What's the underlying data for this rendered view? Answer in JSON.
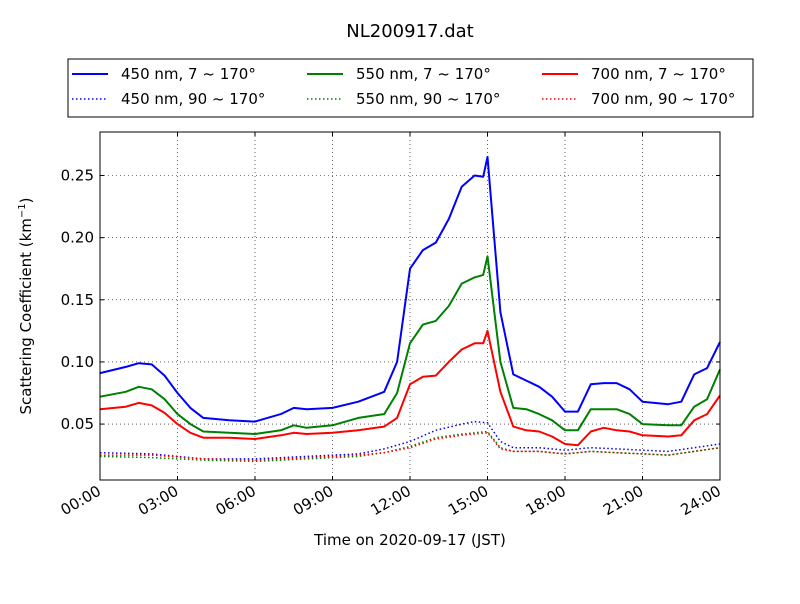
{
  "chart_data": {
    "type": "line",
    "title": "NL200917.dat",
    "xlabel": "Time on 2020-09-17 (JST)",
    "ylabel_main": "Scattering Coefficient (km",
    "ylabel_sup": "−1",
    "ylabel_end": ")",
    "xlim": [
      "00:00",
      "24:00"
    ],
    "ylim": [
      0.005,
      0.285
    ],
    "x_ticks": [
      "00:00",
      "03:00",
      "06:00",
      "09:00",
      "12:00",
      "15:00",
      "18:00",
      "21:00",
      "24:00"
    ],
    "y_ticks": [
      "0.05",
      "0.10",
      "0.15",
      "0.20",
      "0.25"
    ],
    "grid": true,
    "legend_position": "top, above plot, 3 columns",
    "series": [
      {
        "name": "450 nm, 7 ~ 170°",
        "color": "#0000ff",
        "style": "solid",
        "x": [
          "00:00",
          "01:00",
          "01:30",
          "02:00",
          "02:30",
          "03:00",
          "03:30",
          "04:00",
          "05:00",
          "06:00",
          "07:00",
          "07:30",
          "08:00",
          "09:00",
          "10:00",
          "11:00",
          "11:30",
          "12:00",
          "12:30",
          "13:00",
          "13:30",
          "14:00",
          "14:30",
          "14:50",
          "15:00",
          "15:30",
          "16:00",
          "16:30",
          "17:00",
          "17:30",
          "18:00",
          "18:30",
          "19:00",
          "19:30",
          "20:00",
          "20:30",
          "21:00",
          "22:00",
          "22:30",
          "23:00",
          "23:30",
          "24:00"
        ],
        "values": [
          0.091,
          0.096,
          0.099,
          0.098,
          0.089,
          0.075,
          0.063,
          0.055,
          0.053,
          0.052,
          0.058,
          0.063,
          0.062,
          0.063,
          0.068,
          0.076,
          0.1,
          0.175,
          0.19,
          0.196,
          0.215,
          0.241,
          0.25,
          0.249,
          0.265,
          0.14,
          0.09,
          0.085,
          0.08,
          0.072,
          0.06,
          0.06,
          0.082,
          0.083,
          0.083,
          0.078,
          0.068,
          0.066,
          0.068,
          0.09,
          0.095,
          0.116
        ]
      },
      {
        "name": "550 nm, 7 ~ 170°",
        "color": "#008000",
        "style": "solid",
        "x": [
          "00:00",
          "01:00",
          "01:30",
          "02:00",
          "02:30",
          "03:00",
          "03:30",
          "04:00",
          "05:00",
          "06:00",
          "07:00",
          "07:30",
          "08:00",
          "09:00",
          "10:00",
          "11:00",
          "11:30",
          "12:00",
          "12:30",
          "13:00",
          "13:30",
          "14:00",
          "14:30",
          "14:50",
          "15:00",
          "15:30",
          "16:00",
          "16:30",
          "17:00",
          "17:30",
          "18:00",
          "18:30",
          "19:00",
          "19:30",
          "20:00",
          "20:30",
          "21:00",
          "22:00",
          "22:30",
          "23:00",
          "23:30",
          "24:00"
        ],
        "values": [
          0.072,
          0.076,
          0.08,
          0.078,
          0.07,
          0.058,
          0.05,
          0.044,
          0.043,
          0.042,
          0.045,
          0.049,
          0.047,
          0.049,
          0.055,
          0.058,
          0.075,
          0.115,
          0.13,
          0.133,
          0.145,
          0.163,
          0.168,
          0.17,
          0.185,
          0.1,
          0.063,
          0.062,
          0.058,
          0.053,
          0.045,
          0.045,
          0.062,
          0.062,
          0.062,
          0.058,
          0.05,
          0.049,
          0.049,
          0.064,
          0.07,
          0.094
        ]
      },
      {
        "name": "700 nm, 7 ~ 170°",
        "color": "#ff0000",
        "style": "solid",
        "x": [
          "00:00",
          "01:00",
          "01:30",
          "02:00",
          "02:30",
          "03:00",
          "03:30",
          "04:00",
          "05:00",
          "06:00",
          "07:00",
          "07:30",
          "08:00",
          "09:00",
          "10:00",
          "11:00",
          "11:30",
          "12:00",
          "12:30",
          "13:00",
          "13:30",
          "14:00",
          "14:30",
          "14:50",
          "15:00",
          "15:30",
          "16:00",
          "16:30",
          "17:00",
          "17:30",
          "18:00",
          "18:30",
          "19:00",
          "19:30",
          "20:00",
          "20:30",
          "21:00",
          "22:00",
          "22:30",
          "23:00",
          "23:30",
          "24:00"
        ],
        "values": [
          0.062,
          0.064,
          0.067,
          0.065,
          0.059,
          0.05,
          0.043,
          0.039,
          0.039,
          0.038,
          0.041,
          0.043,
          0.042,
          0.043,
          0.045,
          0.048,
          0.055,
          0.082,
          0.088,
          0.089,
          0.1,
          0.11,
          0.115,
          0.115,
          0.125,
          0.076,
          0.048,
          0.045,
          0.044,
          0.04,
          0.034,
          0.033,
          0.044,
          0.047,
          0.045,
          0.044,
          0.041,
          0.04,
          0.041,
          0.053,
          0.058,
          0.073
        ]
      },
      {
        "name": "450 nm, 90 ~ 170°",
        "color": "#0000ff",
        "style": "dotted",
        "x": [
          "00:00",
          "02:00",
          "04:00",
          "06:00",
          "08:00",
          "10:00",
          "11:00",
          "12:00",
          "13:00",
          "14:00",
          "14:30",
          "15:00",
          "15:30",
          "16:00",
          "17:00",
          "18:00",
          "19:00",
          "20:00",
          "21:00",
          "22:00",
          "23:00",
          "24:00"
        ],
        "values": [
          0.027,
          0.026,
          0.022,
          0.022,
          0.024,
          0.026,
          0.03,
          0.036,
          0.045,
          0.05,
          0.052,
          0.051,
          0.036,
          0.031,
          0.031,
          0.029,
          0.031,
          0.03,
          0.029,
          0.028,
          0.031,
          0.034
        ]
      },
      {
        "name": "550 nm, 90 ~ 170°",
        "color": "#008000",
        "style": "dotted",
        "x": [
          "00:00",
          "02:00",
          "04:00",
          "06:00",
          "08:00",
          "10:00",
          "11:00",
          "12:00",
          "13:00",
          "14:00",
          "14:30",
          "15:00",
          "15:30",
          "16:00",
          "17:00",
          "18:00",
          "19:00",
          "20:00",
          "21:00",
          "22:00",
          "23:00",
          "24:00"
        ],
        "values": [
          0.024,
          0.023,
          0.021,
          0.02,
          0.022,
          0.024,
          0.027,
          0.032,
          0.039,
          0.042,
          0.043,
          0.044,
          0.031,
          0.028,
          0.028,
          0.026,
          0.028,
          0.027,
          0.026,
          0.025,
          0.028,
          0.031
        ]
      },
      {
        "name": "700 nm, 90 ~ 170°",
        "color": "#ff0000",
        "style": "dotted",
        "x": [
          "00:00",
          "02:00",
          "04:00",
          "06:00",
          "08:00",
          "10:00",
          "11:00",
          "12:00",
          "13:00",
          "14:00",
          "14:30",
          "15:00",
          "15:30",
          "16:00",
          "17:00",
          "18:00",
          "19:00",
          "20:00",
          "21:00",
          "22:00",
          "23:00",
          "24:00"
        ],
        "values": [
          0.025,
          0.025,
          0.022,
          0.021,
          0.023,
          0.025,
          0.027,
          0.031,
          0.038,
          0.041,
          0.042,
          0.043,
          0.03,
          0.028,
          0.028,
          0.026,
          0.028,
          0.027,
          0.026,
          0.025,
          0.028,
          0.031
        ]
      }
    ]
  }
}
